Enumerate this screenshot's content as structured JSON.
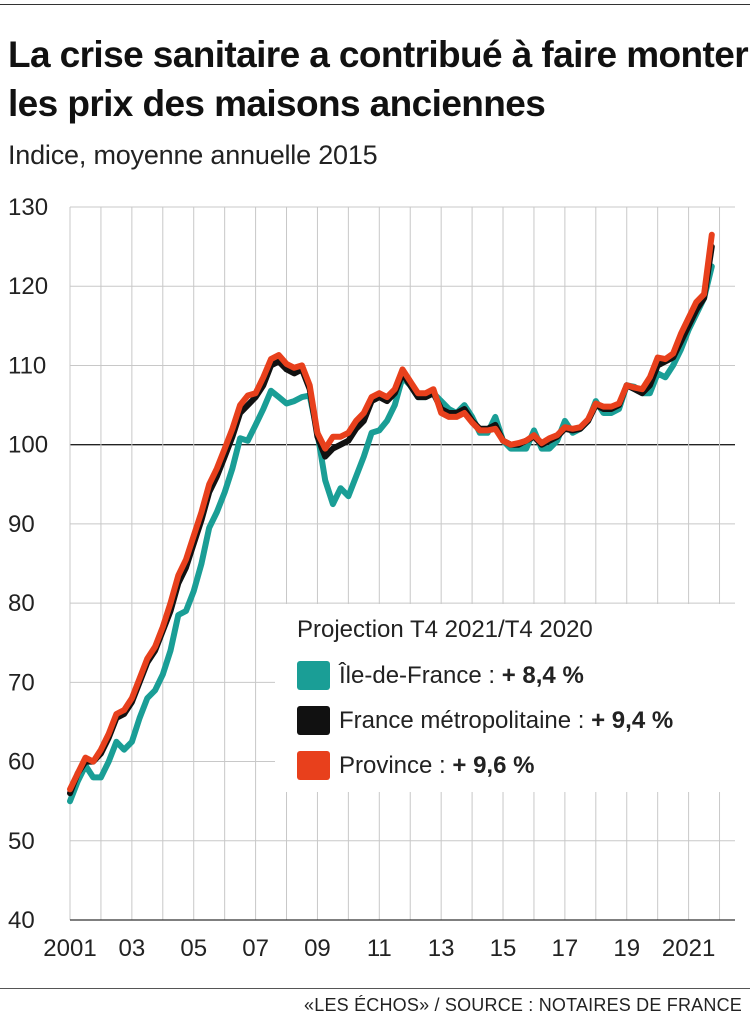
{
  "title": "La crise sanitaire a contribué à faire monter les prix des maisons anciennes",
  "subtitle": "Indice, moyenne annuelle 2015",
  "source": "«LES ÉCHOS» / SOURCE :  NOTAIRES DE FRANCE",
  "colors": {
    "ile_de_france": "#1a9e96",
    "france": "#111111",
    "province": "#e8401c"
  },
  "legend": {
    "title": "Projection T4 2021/T4 2020",
    "items": [
      {
        "label": "Île-de-France : ",
        "value": "+ 8,4 %"
      },
      {
        "label": "France métropolitaine : ",
        "value": "+ 9,4 %"
      },
      {
        "label": "Province : ",
        "value": "+ 9,6 %"
      }
    ]
  },
  "chart_data": {
    "type": "line",
    "xlabel": "",
    "ylabel": "",
    "xlim": [
      2001,
      2022.5
    ],
    "ylim": [
      40,
      130
    ],
    "yticks": [
      40,
      50,
      60,
      70,
      80,
      90,
      100,
      110,
      120,
      130
    ],
    "xtick_labels": [
      {
        "x": 2001,
        "label": "2001"
      },
      {
        "x": 2003,
        "label": "03"
      },
      {
        "x": 2005,
        "label": "05"
      },
      {
        "x": 2007,
        "label": "07"
      },
      {
        "x": 2009,
        "label": "09"
      },
      {
        "x": 2011,
        "label": "11"
      },
      {
        "x": 2013,
        "label": "13"
      },
      {
        "x": 2015,
        "label": "15"
      },
      {
        "x": 2017,
        "label": "17"
      },
      {
        "x": 2019,
        "label": "19"
      },
      {
        "x": 2021,
        "label": "2021"
      }
    ],
    "reference_line": 100,
    "grid": "vertical",
    "series": [
      {
        "name": "Île-de-France",
        "x": [
          2001.0,
          2001.25,
          2001.5,
          2001.75,
          2002.0,
          2002.25,
          2002.5,
          2002.75,
          2003.0,
          2003.25,
          2003.5,
          2003.75,
          2004.0,
          2004.25,
          2004.5,
          2004.75,
          2005.0,
          2005.25,
          2005.5,
          2005.75,
          2006.0,
          2006.25,
          2006.5,
          2006.75,
          2007.0,
          2007.25,
          2007.5,
          2007.75,
          2008.0,
          2008.25,
          2008.5,
          2008.75,
          2009.0,
          2009.25,
          2009.5,
          2009.75,
          2010.0,
          2010.25,
          2010.5,
          2010.75,
          2011.0,
          2011.25,
          2011.5,
          2011.75,
          2012.0,
          2012.25,
          2012.5,
          2012.75,
          2013.0,
          2013.25,
          2013.5,
          2013.75,
          2014.0,
          2014.25,
          2014.5,
          2014.75,
          2015.0,
          2015.25,
          2015.5,
          2015.75,
          2016.0,
          2016.25,
          2016.5,
          2016.75,
          2017.0,
          2017.25,
          2017.5,
          2017.75,
          2018.0,
          2018.25,
          2018.5,
          2018.75,
          2019.0,
          2019.25,
          2019.5,
          2019.75,
          2020.0,
          2020.25,
          2020.5,
          2020.75,
          2021.0,
          2021.25,
          2021.5,
          2021.75
        ],
        "values": [
          55,
          57.5,
          59.5,
          58,
          58,
          60,
          62.5,
          61.5,
          62.5,
          65.5,
          68,
          69,
          71,
          74,
          78.5,
          79,
          81.5,
          85,
          89.5,
          91.5,
          94,
          97,
          100.8,
          100.5,
          102.5,
          104.5,
          106.8,
          106,
          105.2,
          105.5,
          106,
          106.2,
          101.5,
          95.5,
          92.5,
          94.5,
          93.5,
          96,
          98.5,
          101.5,
          101.8,
          103,
          105,
          108.5,
          107.5,
          106,
          106,
          106.5,
          105.5,
          104.5,
          104,
          105,
          103.5,
          101.5,
          101.5,
          103.5,
          100.5,
          99.5,
          99.5,
          99.5,
          101.8,
          99.5,
          99.5,
          100.5,
          103,
          101.5,
          102,
          103,
          105.5,
          104,
          104,
          104.5,
          107.5,
          107.3,
          106.5,
          106.5,
          109,
          108.5,
          110,
          112,
          114.5,
          116.5,
          118.5,
          122.5
        ]
      },
      {
        "name": "France métropolitaine",
        "x": [
          2001.0,
          2001.25,
          2001.5,
          2001.75,
          2002.0,
          2002.25,
          2002.5,
          2002.75,
          2003.0,
          2003.25,
          2003.5,
          2003.75,
          2004.0,
          2004.25,
          2004.5,
          2004.75,
          2005.0,
          2005.25,
          2005.5,
          2005.75,
          2006.0,
          2006.25,
          2006.5,
          2006.75,
          2007.0,
          2007.25,
          2007.5,
          2007.75,
          2008.0,
          2008.25,
          2008.5,
          2008.75,
          2009.0,
          2009.25,
          2009.5,
          2009.75,
          2010.0,
          2010.25,
          2010.5,
          2010.75,
          2011.0,
          2011.25,
          2011.5,
          2011.75,
          2012.0,
          2012.25,
          2012.5,
          2012.75,
          2013.0,
          2013.25,
          2013.5,
          2013.75,
          2014.0,
          2014.25,
          2014.5,
          2014.75,
          2015.0,
          2015.25,
          2015.5,
          2015.75,
          2016.0,
          2016.25,
          2016.5,
          2016.75,
          2017.0,
          2017.25,
          2017.5,
          2017.75,
          2018.0,
          2018.25,
          2018.5,
          2018.75,
          2019.0,
          2019.25,
          2019.5,
          2019.75,
          2020.0,
          2020.25,
          2020.5,
          2020.75,
          2021.0,
          2021.25,
          2021.5,
          2021.75
        ],
        "values": [
          56,
          58.5,
          60,
          60,
          61,
          63,
          65.5,
          66,
          67.5,
          70,
          72.5,
          74,
          76.5,
          79,
          82.5,
          84.5,
          87.5,
          90.5,
          94,
          96,
          98.5,
          101,
          104,
          105,
          106,
          107.5,
          110,
          110.5,
          109.5,
          109,
          109.5,
          107,
          101,
          98.5,
          99.5,
          100,
          100.5,
          102,
          103,
          105.5,
          106,
          105.5,
          106.5,
          109,
          107.5,
          106,
          106,
          106.5,
          104.5,
          104,
          104,
          104.5,
          103,
          102,
          102,
          102.5,
          100.5,
          100,
          100,
          100.5,
          101,
          100,
          100.5,
          101,
          102,
          101.8,
          102,
          103,
          105,
          104.5,
          104.5,
          105,
          107.5,
          107,
          106.5,
          107.5,
          110,
          110.5,
          111,
          113,
          115,
          117,
          118.5,
          125
        ]
      },
      {
        "name": "Province",
        "x": [
          2001.0,
          2001.25,
          2001.5,
          2001.75,
          2002.0,
          2002.25,
          2002.5,
          2002.75,
          2003.0,
          2003.25,
          2003.5,
          2003.75,
          2004.0,
          2004.25,
          2004.5,
          2004.75,
          2005.0,
          2005.25,
          2005.5,
          2005.75,
          2006.0,
          2006.25,
          2006.5,
          2006.75,
          2007.0,
          2007.25,
          2007.5,
          2007.75,
          2008.0,
          2008.25,
          2008.5,
          2008.75,
          2009.0,
          2009.25,
          2009.5,
          2009.75,
          2010.0,
          2010.25,
          2010.5,
          2010.75,
          2011.0,
          2011.25,
          2011.5,
          2011.75,
          2012.0,
          2012.25,
          2012.5,
          2012.75,
          2013.0,
          2013.25,
          2013.5,
          2013.75,
          2014.0,
          2014.25,
          2014.5,
          2014.75,
          2015.0,
          2015.25,
          2015.5,
          2015.75,
          2016.0,
          2016.25,
          2016.5,
          2016.75,
          2017.0,
          2017.25,
          2017.5,
          2017.75,
          2018.0,
          2018.25,
          2018.5,
          2018.75,
          2019.0,
          2019.25,
          2019.5,
          2019.75,
          2020.0,
          2020.25,
          2020.5,
          2020.75,
          2021.0,
          2021.25,
          2021.5,
          2021.75
        ],
        "values": [
          56.5,
          58.5,
          60.5,
          60,
          61.5,
          63.5,
          66,
          66.5,
          68,
          70.5,
          73,
          74.5,
          77,
          80,
          83.5,
          85.5,
          88.5,
          91.5,
          95,
          97,
          99.5,
          102,
          105,
          106.2,
          106.5,
          108.5,
          110.8,
          111.3,
          110.2,
          109.7,
          110,
          107.5,
          101.5,
          99.5,
          101,
          101,
          101.5,
          103,
          104,
          106,
          106.5,
          106,
          107,
          109.5,
          108,
          106.5,
          106.5,
          107,
          104,
          103.5,
          103.5,
          104,
          102.8,
          101.8,
          101.8,
          102,
          100.5,
          100,
          100.2,
          100.5,
          101.2,
          100.2,
          100.8,
          101.2,
          102.2,
          102,
          102.2,
          103.2,
          105.2,
          104.8,
          104.8,
          105.2,
          107.5,
          107.2,
          107,
          108.5,
          111,
          110.8,
          111.5,
          114,
          116,
          118,
          119,
          126.5
        ]
      }
    ]
  }
}
